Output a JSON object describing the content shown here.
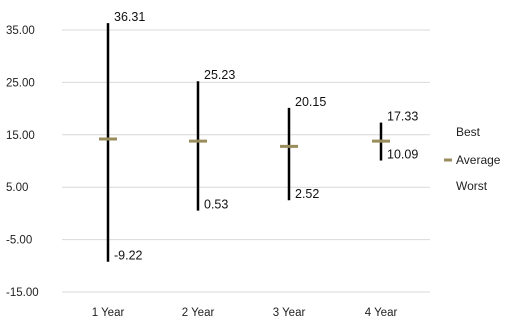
{
  "chart_data": {
    "type": "stock",
    "categories": [
      "1 Year",
      "2 Year",
      "3 Year",
      "4 Year"
    ],
    "series": [
      {
        "name": "Best",
        "values": [
          36.31,
          25.23,
          20.15,
          17.33
        ]
      },
      {
        "name": "Average",
        "values": [
          14.2,
          13.8,
          12.8,
          13.8
        ]
      },
      {
        "name": "Worst",
        "values": [
          -9.22,
          0.53,
          2.52,
          10.09
        ]
      }
    ],
    "ylim": [
      -15,
      35
    ],
    "yticks": [
      35,
      25,
      15,
      5,
      -5,
      -15
    ],
    "ytick_labels": [
      "35.00",
      "25.00",
      "15.00",
      "5.00",
      "-5.00",
      "-15.00"
    ],
    "grid": true,
    "legend_position": "right",
    "colors": {
      "range": "#000000",
      "average": "#9a8d5c",
      "grid": "#d9d9d9",
      "text": "#222222"
    }
  }
}
